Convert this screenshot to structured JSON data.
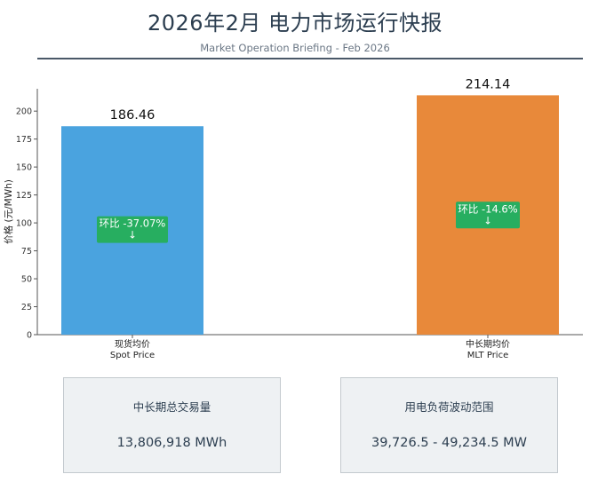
{
  "header": {
    "title": "2026年2月 电力市场运行快报",
    "subtitle": "Market Operation Briefing - Feb 2026"
  },
  "chart_data": {
    "type": "bar",
    "ylabel": "价格 (元/MWh)",
    "ylim": [
      0,
      220
    ],
    "yticks": [
      0,
      25,
      50,
      75,
      100,
      125,
      150,
      175,
      200
    ],
    "categories": [
      "现货均价\nSpot Price",
      "中长期均价\nMLT Price"
    ],
    "values": [
      186.46,
      214.14
    ],
    "value_labels": [
      "186.46",
      "214.14"
    ],
    "colors": [
      "#4aa3df",
      "#e8893a"
    ],
    "annotations": [
      {
        "text": "环比 -37.07%\n↓",
        "y": 94,
        "color": "#27ae60"
      },
      {
        "text": "环比 -14.6%\n↓",
        "y": 107,
        "color": "#27ae60"
      }
    ]
  },
  "kpis": [
    {
      "label": "中长期总交易量",
      "value": "13,806,918 MWh"
    },
    {
      "label": "用电负荷波动范围",
      "value": "39,726.5 - 49,234.5 MW"
    }
  ]
}
